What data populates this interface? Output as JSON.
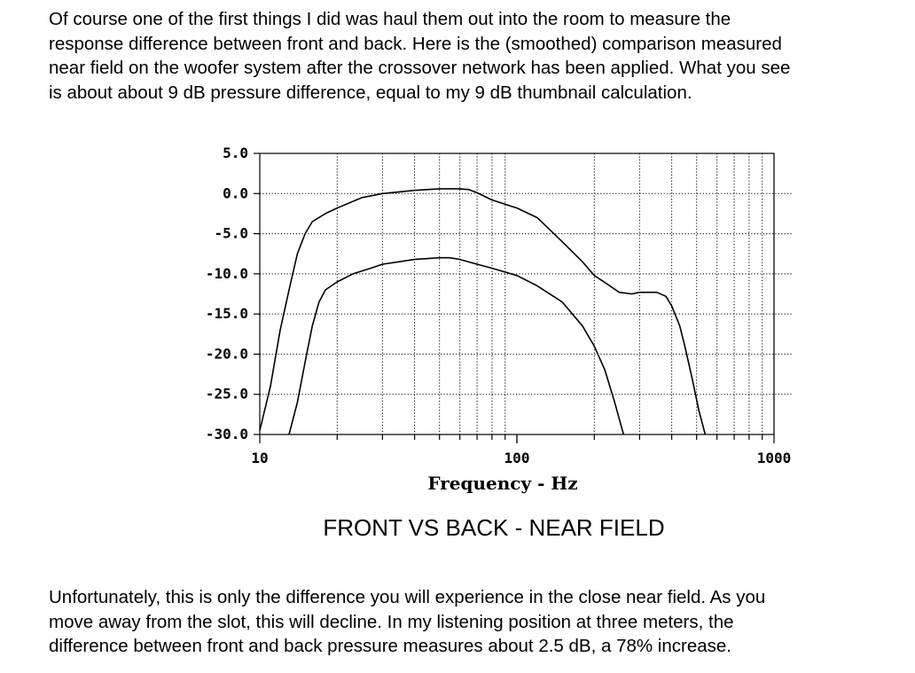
{
  "text": {
    "intro_lines": [
      "Of course one of the first things I did was haul them out into the room to measure the",
      "response difference between front and back.  Here is the (smoothed) comparison measured",
      "near field on the woofer system after the crossover network has been applied.  What you see",
      "is about about 9 dB pressure difference, equal to my 9 dB thumbnail calculation."
    ],
    "outro_lines": [
      "Unfortunately, this is only the difference you will experience in the close near field.  As you",
      "move away from the slot, this will decline.  In my listening position at three meters, the",
      "difference between front and back pressure measures about 2.5 dB, a 78% increase."
    ]
  },
  "chart_data": {
    "type": "line",
    "title": "FRONT VS BACK - NEAR FIELD",
    "xlabel": "Frequency  -  Hz",
    "ylabel": "",
    "xscale": "log",
    "xlim": [
      10,
      1000
    ],
    "ylim": [
      -30,
      5
    ],
    "x_tick_labels": [
      "10",
      "100",
      "1000"
    ],
    "y_tick_labels": [
      "5.0",
      "0.0",
      "-5.0",
      "-10.0",
      "-15.0",
      "-20.0",
      "-25.0",
      "-30.0"
    ],
    "grid": true,
    "legend": "none",
    "series": [
      {
        "points": [
          [
            10,
            -29.5
          ],
          [
            11,
            -24
          ],
          [
            12,
            -17
          ],
          [
            13,
            -12
          ],
          [
            14,
            -7.5
          ],
          [
            15,
            -5
          ],
          [
            16,
            -3.5
          ],
          [
            18,
            -2.5
          ],
          [
            20,
            -1.8
          ],
          [
            25,
            -0.5
          ],
          [
            30,
            0
          ],
          [
            40,
            0.4
          ],
          [
            50,
            0.6
          ],
          [
            60,
            0.6
          ],
          [
            65,
            0.5
          ],
          [
            70,
            0.1
          ],
          [
            80,
            -0.8
          ],
          [
            100,
            -1.8
          ],
          [
            120,
            -3
          ],
          [
            150,
            -6
          ],
          [
            180,
            -8.5
          ],
          [
            200,
            -10.2
          ],
          [
            230,
            -11.5
          ],
          [
            250,
            -12.3
          ],
          [
            280,
            -12.5
          ],
          [
            300,
            -12.3
          ],
          [
            330,
            -12.3
          ],
          [
            350,
            -12.3
          ],
          [
            380,
            -12.8
          ],
          [
            400,
            -14
          ],
          [
            430,
            -16.5
          ],
          [
            450,
            -19
          ],
          [
            480,
            -23
          ],
          [
            510,
            -27
          ],
          [
            540,
            -30
          ]
        ]
      },
      {
        "points": [
          [
            13,
            -30
          ],
          [
            14,
            -26
          ],
          [
            15,
            -21
          ],
          [
            16,
            -16.5
          ],
          [
            17,
            -13.5
          ],
          [
            18,
            -12
          ],
          [
            20,
            -11
          ],
          [
            23,
            -10
          ],
          [
            27,
            -9.3
          ],
          [
            30,
            -8.8
          ],
          [
            40,
            -8.2
          ],
          [
            50,
            -8
          ],
          [
            55,
            -8
          ],
          [
            60,
            -8.2
          ],
          [
            70,
            -8.8
          ],
          [
            80,
            -9.3
          ],
          [
            100,
            -10.2
          ],
          [
            120,
            -11.5
          ],
          [
            150,
            -13.5
          ],
          [
            180,
            -16.5
          ],
          [
            200,
            -19
          ],
          [
            220,
            -22
          ],
          [
            240,
            -26
          ],
          [
            260,
            -30
          ]
        ]
      }
    ]
  }
}
